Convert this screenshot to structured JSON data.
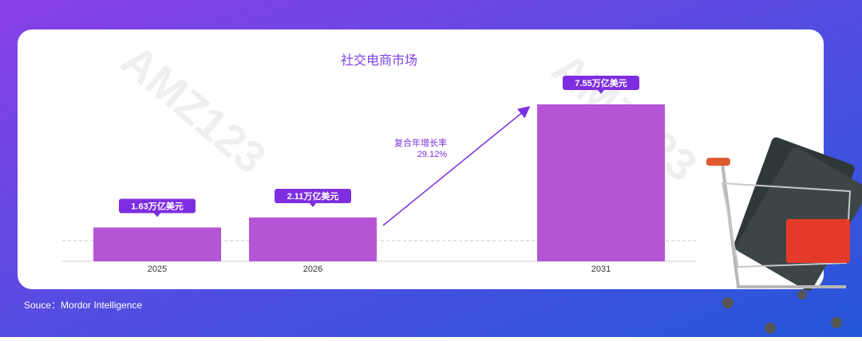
{
  "chart_data": {
    "type": "bar",
    "title": "社交电商市场",
    "categories": [
      "2025",
      "2026",
      "2031"
    ],
    "values": [
      1.63,
      2.11,
      7.55
    ],
    "value_labels": [
      "1.63万亿美元",
      "2.11万亿美元",
      "7.55万亿美元"
    ],
    "color": "#b455d6",
    "annotation": [
      "复合年增长率",
      "29.12%"
    ]
  },
  "source": "Souce：Mordor Intelligence",
  "watermark": "AMZ123"
}
